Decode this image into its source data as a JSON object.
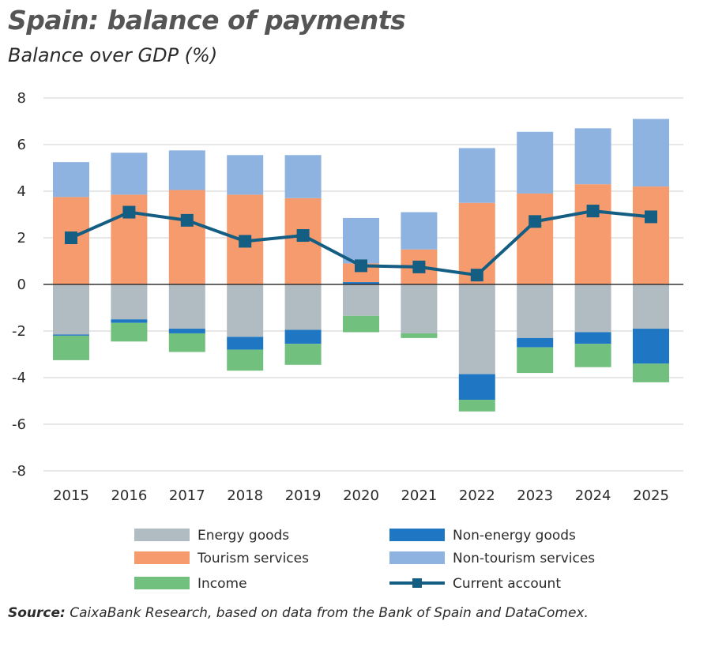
{
  "title": "Spain: balance of payments",
  "subtitle": "Balance over GDP (%)",
  "source": {
    "label": "Source:",
    "text": " CaixaBank Research, based on data from the Bank of Spain and DataComex."
  },
  "chart_data": {
    "type": "bar",
    "stacked": true,
    "categories": [
      "2015",
      "2016",
      "2017",
      "2018",
      "2019",
      "2020",
      "2021",
      "2022",
      "2023",
      "2024",
      "2025"
    ],
    "ylim": [
      -8,
      8
    ],
    "yticks": [
      8,
      6,
      4,
      2,
      0,
      -2,
      -4,
      -6,
      -8
    ],
    "grid": true,
    "legend_position": "bottom",
    "series": [
      {
        "name": "Energy goods",
        "color": "#b0bcc2",
        "values": [
          -2.15,
          -1.5,
          -1.9,
          -2.25,
          -1.95,
          -1.35,
          -2.1,
          -3.85,
          -2.3,
          -2.05,
          -1.9
        ]
      },
      {
        "name": "Non-energy goods",
        "color": "#1f77c4",
        "values": [
          -0.05,
          -0.15,
          -0.2,
          -0.55,
          -0.6,
          0.1,
          0.0,
          -1.1,
          -0.4,
          -0.5,
          -1.5
        ]
      },
      {
        "name": "Income",
        "color": "#72c07e",
        "values": [
          -1.05,
          -0.8,
          -0.8,
          -0.9,
          -0.9,
          -0.7,
          -0.2,
          -0.5,
          -1.1,
          -1.0,
          -0.8
        ]
      },
      {
        "name": "Tourism services",
        "color": "#f59b6e",
        "values": [
          3.75,
          3.85,
          4.05,
          3.85,
          3.7,
          0.8,
          1.5,
          3.5,
          3.9,
          4.3,
          4.2
        ]
      },
      {
        "name": "Non-tourism services",
        "color": "#8fb3e0",
        "values": [
          1.5,
          1.8,
          1.7,
          1.7,
          1.85,
          1.95,
          1.6,
          2.35,
          2.65,
          2.4,
          2.9
        ]
      }
    ],
    "line_series": {
      "name": "Current account",
      "color": "#135e82",
      "values": [
        2.0,
        3.1,
        2.75,
        1.85,
        2.1,
        0.8,
        0.75,
        0.4,
        2.7,
        3.15,
        2.9
      ]
    },
    "legend_order": [
      [
        "Energy goods",
        "Non-energy goods"
      ],
      [
        "Tourism services",
        "Non-tourism services"
      ],
      [
        "Income",
        "Current account"
      ]
    ]
  }
}
